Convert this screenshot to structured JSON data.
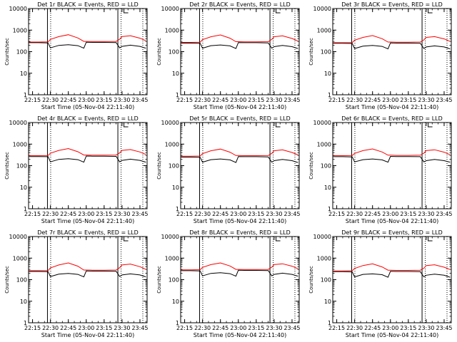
{
  "chart_data": [
    {
      "type": "line",
      "title": "Det 1r BLACK = Events, RED = LLD",
      "xlabel": "Start Time (05-Nov-04 22:11:40)",
      "ylabel": "Counts/sec",
      "y_scale": "log",
      "ylim": [
        1,
        10000
      ],
      "xlim": [
        "22:11:40",
        "23:51:00"
      ],
      "x_ticks": [
        "22:15",
        "22:30",
        "22:45",
        "23:00",
        "23:15",
        "23:30",
        "23:45"
      ],
      "y_ticks": [
        "1",
        "10",
        "100",
        "1000",
        "10000"
      ],
      "markers": [
        "22:29",
        "23:28"
      ],
      "colors": {
        "events": "#000000",
        "lld": "#ff0000"
      },
      "x": [
        "22:12",
        "22:20",
        "22:28",
        "22:30",
        "22:37",
        "22:45",
        "22:53",
        "22:58",
        "23:00",
        "23:05",
        "23:15",
        "23:25",
        "23:28",
        "23:30",
        "23:37",
        "23:45",
        "23:50"
      ],
      "series": [
        {
          "name": "Events",
          "values": [
            260,
            260,
            255,
            150,
            195,
            210,
            190,
            145,
            275,
            270,
            270,
            265,
            150,
            175,
            200,
            175,
            145
          ]
        },
        {
          "name": "LLD",
          "values": [
            280,
            280,
            285,
            370,
            500,
            610,
            430,
            300,
            300,
            295,
            295,
            300,
            380,
            500,
            550,
            420,
            320
          ]
        }
      ]
    },
    {
      "type": "line",
      "title": "Det 2r BLACK = Events, RED = LLD",
      "xlabel": "Start Time (05-Nov-04 22:11:40)",
      "ylabel": "Counts/sec",
      "y_scale": "log",
      "ylim": [
        1,
        10000
      ],
      "xlim": [
        "22:11:40",
        "23:51:00"
      ],
      "x_ticks": [
        "22:15",
        "22:30",
        "22:45",
        "23:00",
        "23:15",
        "23:30",
        "23:45"
      ],
      "y_ticks": [
        "1",
        "10",
        "100",
        "1000",
        "10000"
      ],
      "markers": [
        "22:29",
        "23:28"
      ],
      "colors": {
        "events": "#000000",
        "lld": "#ff0000"
      },
      "x": [
        "22:12",
        "22:20",
        "22:28",
        "22:30",
        "22:37",
        "22:45",
        "22:53",
        "22:58",
        "23:00",
        "23:05",
        "23:15",
        "23:25",
        "23:28",
        "23:30",
        "23:37",
        "23:45",
        "23:50"
      ],
      "series": [
        {
          "name": "Events",
          "values": [
            250,
            250,
            245,
            145,
            190,
            205,
            185,
            140,
            265,
            260,
            260,
            255,
            145,
            170,
            195,
            170,
            140
          ]
        },
        {
          "name": "LLD",
          "values": [
            270,
            270,
            275,
            360,
            490,
            600,
            420,
            290,
            290,
            285,
            285,
            290,
            370,
            490,
            540,
            410,
            310
          ]
        }
      ]
    },
    {
      "type": "line",
      "title": "Det 3r BLACK = Events, RED = LLD",
      "xlabel": "Start Time (05-Nov-04 22:11:40)",
      "ylabel": "Counts/sec",
      "y_scale": "log",
      "ylim": [
        1,
        10000
      ],
      "xlim": [
        "22:11:40",
        "23:51:00"
      ],
      "x_ticks": [
        "22:15",
        "22:30",
        "22:45",
        "23:00",
        "23:15",
        "23:30",
        "23:45"
      ],
      "y_ticks": [
        "1",
        "10",
        "100",
        "1000",
        "10000"
      ],
      "markers": [
        "22:29",
        "23:28"
      ],
      "colors": {
        "events": "#000000",
        "lld": "#ff0000"
      },
      "x": [
        "22:12",
        "22:20",
        "22:28",
        "22:30",
        "22:37",
        "22:45",
        "22:53",
        "22:58",
        "23:00",
        "23:05",
        "23:15",
        "23:25",
        "23:28",
        "23:30",
        "23:37",
        "23:45",
        "23:50"
      ],
      "series": [
        {
          "name": "Events",
          "values": [
            245,
            245,
            240,
            140,
            180,
            195,
            175,
            135,
            255,
            250,
            250,
            245,
            140,
            165,
            185,
            165,
            135
          ]
        },
        {
          "name": "LLD",
          "values": [
            260,
            260,
            265,
            340,
            460,
            560,
            400,
            280,
            280,
            275,
            275,
            280,
            350,
            460,
            500,
            390,
            300
          ]
        }
      ]
    },
    {
      "type": "line",
      "title": "Det 4r BLACK = Events, RED = LLD",
      "xlabel": "Start Time (05-Nov-04 22:11:40)",
      "ylabel": "Counts/sec",
      "y_scale": "log",
      "ylim": [
        1,
        10000
      ],
      "xlim": [
        "22:11:40",
        "23:51:00"
      ],
      "x_ticks": [
        "22:15",
        "22:30",
        "22:45",
        "23:00",
        "23:15",
        "23:30",
        "23:45"
      ],
      "y_ticks": [
        "1",
        "10",
        "100",
        "1000",
        "10000"
      ],
      "markers": [
        "22:29",
        "23:28"
      ],
      "colors": {
        "events": "#000000",
        "lld": "#ff0000"
      },
      "x": [
        "22:12",
        "22:20",
        "22:28",
        "22:30",
        "22:37",
        "22:45",
        "22:53",
        "22:58",
        "23:00",
        "23:05",
        "23:15",
        "23:25",
        "23:28",
        "23:30",
        "23:37",
        "23:45",
        "23:50"
      ],
      "series": [
        {
          "name": "Events",
          "values": [
            265,
            265,
            260,
            150,
            195,
            210,
            190,
            145,
            280,
            275,
            275,
            270,
            150,
            175,
            200,
            175,
            145
          ]
        },
        {
          "name": "LLD",
          "values": [
            290,
            290,
            295,
            380,
            510,
            620,
            440,
            310,
            310,
            305,
            305,
            310,
            390,
            510,
            560,
            430,
            330
          ]
        }
      ]
    },
    {
      "type": "line",
      "title": "Det 5r BLACK = Events, RED = LLD",
      "xlabel": "Start Time (05-Nov-04 22:11:40)",
      "ylabel": "Counts/sec",
      "y_scale": "log",
      "ylim": [
        1,
        10000
      ],
      "xlim": [
        "22:11:40",
        "23:51:00"
      ],
      "x_ticks": [
        "22:15",
        "22:30",
        "22:45",
        "23:00",
        "23:15",
        "23:30",
        "23:45"
      ],
      "y_ticks": [
        "1",
        "10",
        "100",
        "1000",
        "10000"
      ],
      "markers": [
        "22:29",
        "23:28"
      ],
      "colors": {
        "events": "#000000",
        "lld": "#ff0000"
      },
      "x": [
        "22:12",
        "22:20",
        "22:28",
        "22:30",
        "22:37",
        "22:45",
        "22:53",
        "22:58",
        "23:00",
        "23:05",
        "23:15",
        "23:25",
        "23:28",
        "23:30",
        "23:37",
        "23:45",
        "23:50"
      ],
      "series": [
        {
          "name": "Events",
          "values": [
            250,
            250,
            245,
            145,
            190,
            205,
            185,
            140,
            265,
            260,
            260,
            255,
            145,
            170,
            195,
            170,
            140
          ]
        },
        {
          "name": "LLD",
          "values": [
            275,
            275,
            280,
            360,
            490,
            590,
            420,
            295,
            295,
            290,
            290,
            295,
            370,
            490,
            540,
            410,
            315
          ]
        }
      ]
    },
    {
      "type": "line",
      "title": "Det 6r BLACK = Events, RED = LLD",
      "xlabel": "Start Time (05-Nov-04 22:11:40)",
      "ylabel": "Counts/sec",
      "y_scale": "log",
      "ylim": [
        1,
        10000
      ],
      "xlim": [
        "22:11:40",
        "23:51:00"
      ],
      "x_ticks": [
        "22:15",
        "22:30",
        "22:45",
        "23:00",
        "23:15",
        "23:30",
        "23:45"
      ],
      "y_ticks": [
        "1",
        "10",
        "100",
        "1000",
        "10000"
      ],
      "markers": [
        "22:29",
        "23:28"
      ],
      "colors": {
        "events": "#000000",
        "lld": "#ff0000"
      },
      "x": [
        "22:12",
        "22:20",
        "22:28",
        "22:30",
        "22:37",
        "22:45",
        "22:53",
        "22:58",
        "23:00",
        "23:05",
        "23:15",
        "23:25",
        "23:28",
        "23:30",
        "23:37",
        "23:45",
        "23:50"
      ],
      "series": [
        {
          "name": "Events",
          "values": [
            260,
            260,
            255,
            150,
            190,
            205,
            185,
            145,
            270,
            265,
            265,
            260,
            150,
            170,
            195,
            170,
            145
          ]
        },
        {
          "name": "LLD",
          "values": [
            290,
            290,
            295,
            370,
            500,
            600,
            430,
            305,
            305,
            300,
            300,
            305,
            380,
            500,
            545,
            420,
            320
          ]
        }
      ]
    },
    {
      "type": "line",
      "title": "Det 7r BLACK = Events, RED = LLD",
      "xlabel": "Start Time (05-Nov-04 22:11:40)",
      "ylabel": "Counts/sec",
      "y_scale": "log",
      "ylim": [
        1,
        10000
      ],
      "xlim": [
        "22:11:40",
        "23:51:00"
      ],
      "x_ticks": [
        "22:15",
        "22:30",
        "22:45",
        "23:00",
        "23:15",
        "23:30",
        "23:45"
      ],
      "y_ticks": [
        "1",
        "10",
        "100",
        "1000",
        "10000"
      ],
      "markers": [
        "22:29",
        "23:28"
      ],
      "colors": {
        "events": "#000000",
        "lld": "#ff0000"
      },
      "x": [
        "22:12",
        "22:20",
        "22:28",
        "22:30",
        "22:37",
        "22:45",
        "22:53",
        "22:58",
        "23:00",
        "23:05",
        "23:15",
        "23:25",
        "23:28",
        "23:30",
        "23:37",
        "23:45",
        "23:50"
      ],
      "series": [
        {
          "name": "Events",
          "values": [
            240,
            240,
            235,
            140,
            180,
            195,
            175,
            135,
            255,
            250,
            250,
            245,
            140,
            165,
            185,
            165,
            135
          ]
        },
        {
          "name": "LLD",
          "values": [
            260,
            260,
            265,
            350,
            480,
            600,
            420,
            280,
            280,
            275,
            275,
            280,
            360,
            480,
            530,
            400,
            300
          ]
        }
      ]
    },
    {
      "type": "line",
      "title": "Det 8r BLACK = Events, RED = LLD",
      "xlabel": "Start Time (05-Nov-04 22:11:40)",
      "ylabel": "Counts/sec",
      "y_scale": "log",
      "ylim": [
        1,
        10000
      ],
      "xlim": [
        "22:11:40",
        "23:51:00"
      ],
      "x_ticks": [
        "22:15",
        "22:30",
        "22:45",
        "23:00",
        "23:15",
        "23:30",
        "23:45"
      ],
      "y_ticks": [
        "1",
        "10",
        "100",
        "1000",
        "10000"
      ],
      "markers": [
        "22:29",
        "23:28"
      ],
      "colors": {
        "events": "#000000",
        "lld": "#ff0000"
      },
      "x": [
        "22:12",
        "22:20",
        "22:28",
        "22:30",
        "22:37",
        "22:45",
        "22:53",
        "22:58",
        "23:00",
        "23:05",
        "23:15",
        "23:25",
        "23:28",
        "23:30",
        "23:37",
        "23:45",
        "23:50"
      ],
      "series": [
        {
          "name": "Events",
          "values": [
            260,
            260,
            255,
            150,
            195,
            210,
            190,
            145,
            275,
            270,
            270,
            265,
            150,
            175,
            200,
            175,
            145
          ]
        },
        {
          "name": "LLD",
          "values": [
            285,
            285,
            290,
            370,
            500,
            600,
            430,
            300,
            300,
            295,
            295,
            300,
            380,
            500,
            545,
            420,
            320
          ]
        }
      ]
    },
    {
      "type": "line",
      "title": "Det 9r BLACK = Events, RED = LLD",
      "xlabel": "Start Time (05-Nov-04 22:11:40)",
      "ylabel": "Counts/sec",
      "y_scale": "log",
      "ylim": [
        1,
        10000
      ],
      "xlim": [
        "22:11:40",
        "23:51:00"
      ],
      "x_ticks": [
        "22:15",
        "22:30",
        "22:45",
        "23:00",
        "23:15",
        "23:30",
        "23:45"
      ],
      "y_ticks": [
        "1",
        "10",
        "100",
        "1000",
        "10000"
      ],
      "markers": [
        "22:29",
        "23:28"
      ],
      "colors": {
        "events": "#000000",
        "lld": "#ff0000"
      },
      "x": [
        "22:12",
        "22:20",
        "22:28",
        "22:30",
        "22:37",
        "22:45",
        "22:53",
        "22:58",
        "23:00",
        "23:05",
        "23:15",
        "23:25",
        "23:28",
        "23:30",
        "23:37",
        "23:45",
        "23:50"
      ],
      "series": [
        {
          "name": "Events",
          "values": [
            235,
            235,
            230,
            135,
            175,
            185,
            170,
            130,
            245,
            240,
            240,
            235,
            135,
            160,
            180,
            160,
            130
          ]
        },
        {
          "name": "LLD",
          "values": [
            255,
            255,
            260,
            330,
            450,
            540,
            390,
            275,
            275,
            270,
            270,
            275,
            340,
            450,
            490,
            380,
            295
          ]
        }
      ]
    }
  ]
}
